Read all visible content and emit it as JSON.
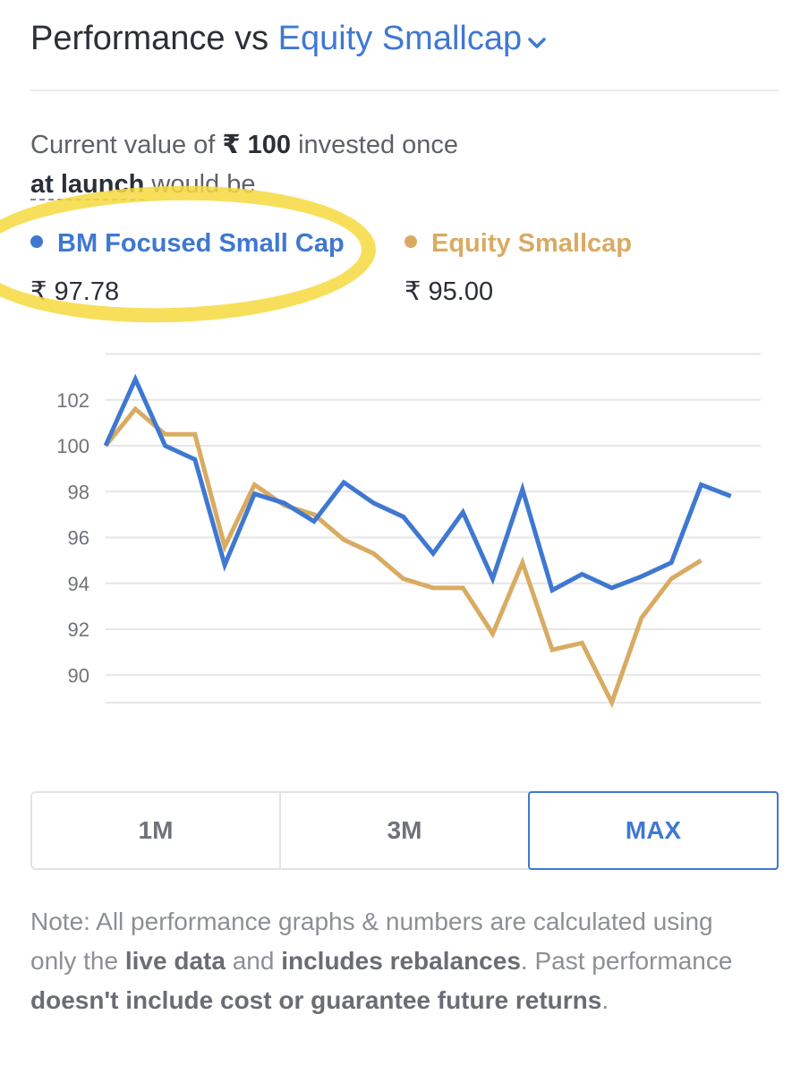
{
  "header": {
    "title_prefix": "Performance vs",
    "benchmark": "Equity Smallcap"
  },
  "intro": {
    "line1_start": "Current value of",
    "currency": "₹",
    "amount": "100",
    "line1_end": "invested once",
    "launch": "at launch",
    "line2_end": "would be"
  },
  "legend": {
    "fund": {
      "name": "BM Focused Small Cap",
      "value": "₹ 97.78",
      "color": "#3f78d1"
    },
    "benchmark": {
      "name": "Equity Smallcap",
      "value": "₹ 95.00",
      "color": "#d9ab62"
    }
  },
  "chart_data": {
    "type": "line",
    "title": "",
    "xlabel": "",
    "ylabel": "",
    "ylim": [
      88.8,
      104.8
    ],
    "yticks": [
      90,
      92,
      94,
      96,
      98,
      100,
      102
    ],
    "x": [
      0,
      1,
      2,
      3,
      4,
      5,
      6,
      7,
      8,
      9,
      10,
      11,
      12,
      13,
      14,
      15,
      16,
      17,
      18,
      19,
      20,
      21,
      22
    ],
    "series": [
      {
        "name": "BM Focused Small Cap",
        "color": "#3f78d1",
        "values": [
          100.0,
          102.9,
          100.0,
          99.4,
          94.8,
          97.9,
          97.5,
          96.7,
          98.4,
          97.5,
          96.9,
          95.3,
          97.1,
          94.2,
          98.1,
          93.7,
          94.4,
          93.8,
          94.3,
          94.9,
          98.3,
          97.8,
          null
        ]
      },
      {
        "name": "Equity Smallcap",
        "color": "#d9ab62",
        "values": [
          100.0,
          101.6,
          100.5,
          100.5,
          95.6,
          98.3,
          97.4,
          97.0,
          95.9,
          95.3,
          94.2,
          93.8,
          93.8,
          91.8,
          94.9,
          91.1,
          91.4,
          88.8,
          92.5,
          94.2,
          95.0,
          null,
          null
        ]
      }
    ]
  },
  "periods": {
    "items": [
      {
        "label": "1M",
        "active": false
      },
      {
        "label": "3M",
        "active": false
      },
      {
        "label": "MAX",
        "active": true
      }
    ]
  },
  "note": {
    "prefix": "Note: All performance graphs & numbers are calculated using only the",
    "b1": "live data",
    "mid1": "and",
    "b2": "includes rebalances",
    "mid2": ". Past performance",
    "b3": "doesn't include cost or guarantee future returns",
    "end": "."
  }
}
